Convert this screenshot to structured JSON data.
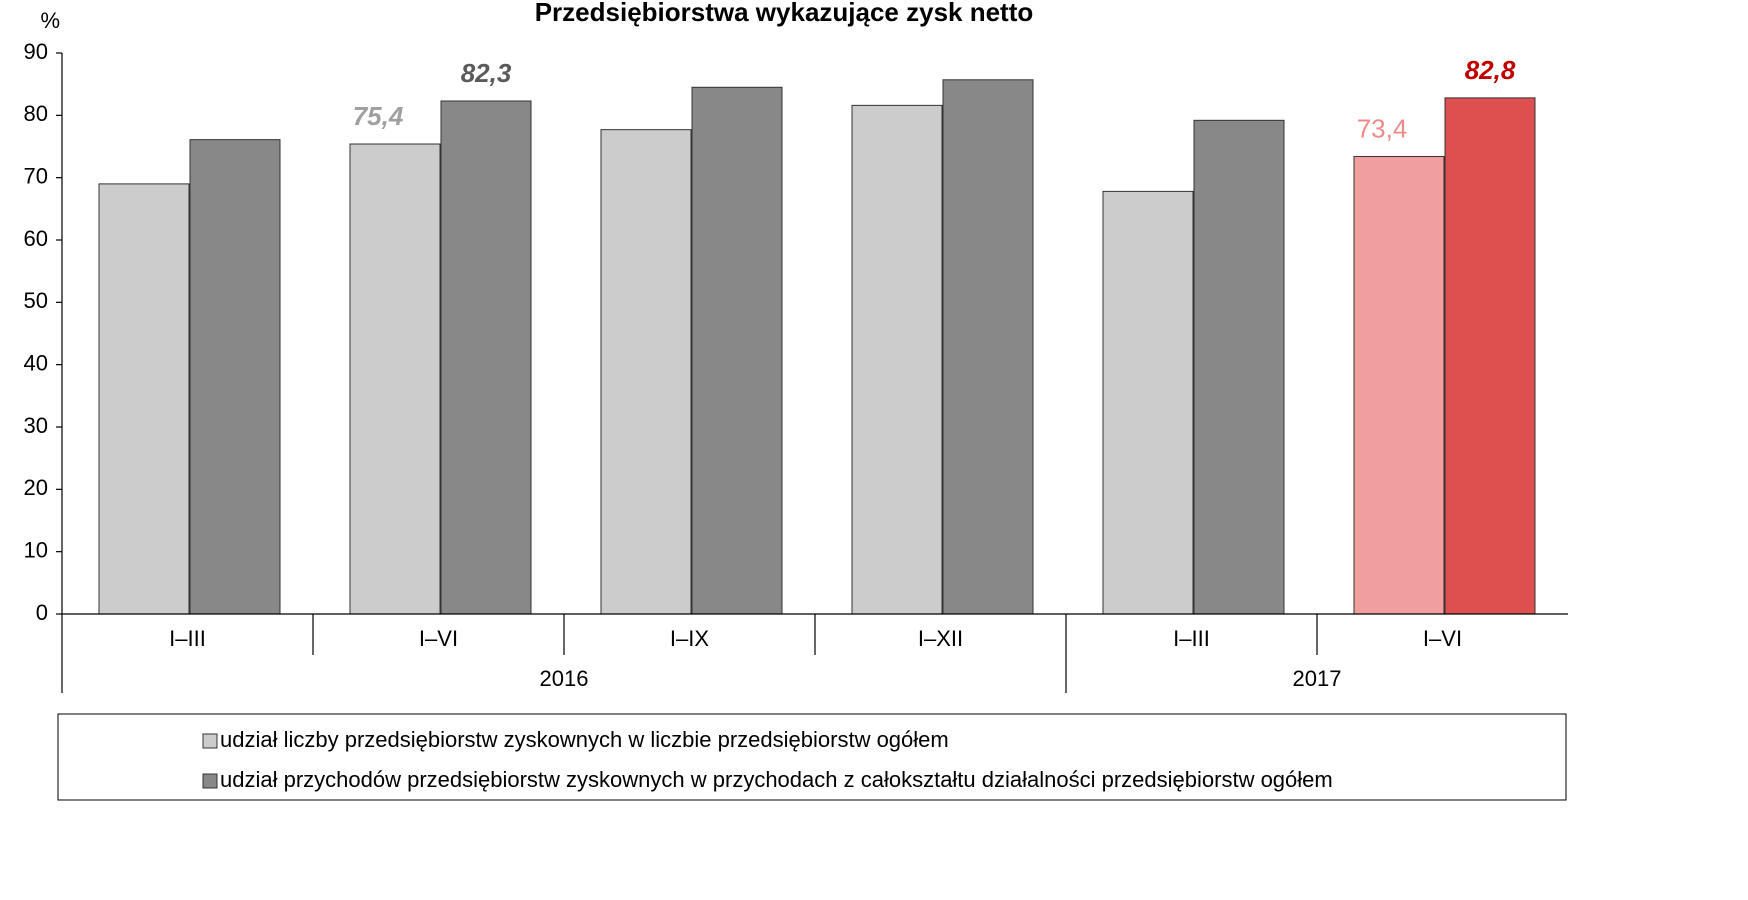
{
  "chart_data": {
    "type": "bar",
    "title": "Przedsiębiorstwa wykazujące zysk netto",
    "y_unit": "%",
    "categories": [
      "I–III",
      "I–VI",
      "I–IX",
      "I–XII",
      "I–III",
      "I–VI"
    ],
    "group_labels": [
      "2016",
      null,
      null,
      null,
      "2017",
      null
    ],
    "series": [
      {
        "name": "udział liczby przedsiębiorstw zyskownych w liczbie przedsiębiorstw ogółem",
        "color": "#cccccc",
        "colors": [
          "#cccccc",
          "#cccccc",
          "#cccccc",
          "#cccccc",
          "#cccccc",
          "#f09e9e"
        ],
        "values": [
          69.0,
          75.4,
          77.7,
          81.6,
          67.8,
          73.4
        ],
        "value_labels": [
          null,
          "75,4",
          null,
          null,
          null,
          "73,4"
        ],
        "value_label_colors": [
          null,
          "#a0a0a0",
          null,
          null,
          null,
          "#f08a8a"
        ],
        "value_label_styles": [
          null,
          "bold-italic",
          null,
          null,
          null,
          "normal"
        ]
      },
      {
        "name": "udział przychodów przedsiębiorstw zyskownych w przychodach z całokształtu działalności przedsiębiorstw ogółem",
        "color": "#888888",
        "colors": [
          "#888888",
          "#888888",
          "#888888",
          "#888888",
          "#888888",
          "#de5050"
        ],
        "values": [
          76.1,
          82.3,
          84.5,
          85.7,
          79.2,
          82.8
        ],
        "value_labels": [
          null,
          "82,3",
          null,
          null,
          null,
          "82,8"
        ],
        "value_label_colors": [
          null,
          "#5a5a5a",
          null,
          null,
          null,
          "#c00000"
        ],
        "value_label_styles": [
          null,
          "bold-italic",
          null,
          null,
          null,
          "bold-italic"
        ]
      }
    ],
    "ylim": [
      0,
      90
    ],
    "yticks": [
      0,
      10,
      20,
      30,
      40,
      50,
      60,
      70,
      80,
      90
    ],
    "grid": false
  }
}
